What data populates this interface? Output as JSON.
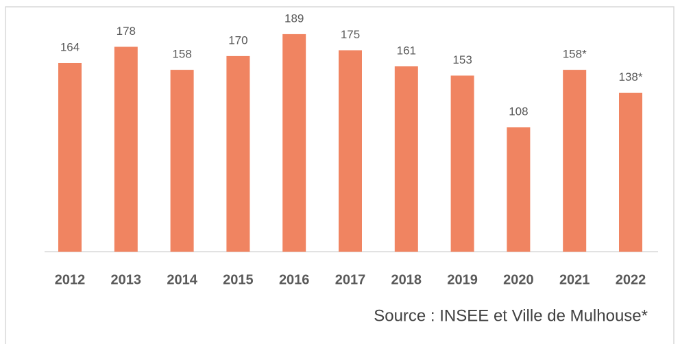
{
  "chart_data": {
    "type": "bar",
    "categories": [
      "2012",
      "2013",
      "2014",
      "2015",
      "2016",
      "2017",
      "2018",
      "2019",
      "2020",
      "2021",
      "2022"
    ],
    "values": [
      164,
      178,
      158,
      170,
      189,
      175,
      161,
      153,
      108,
      158,
      138
    ],
    "value_labels": [
      "164",
      "178",
      "158",
      "170",
      "189",
      "175",
      "161",
      "153",
      "108",
      "158*",
      "138*"
    ],
    "color": "#f08461",
    "source": "Source : INSEE et Ville de Mulhouse*"
  }
}
